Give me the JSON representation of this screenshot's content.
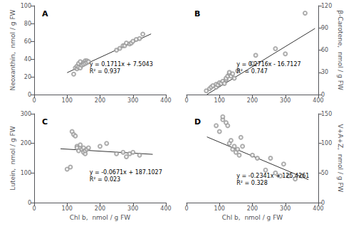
{
  "chart_data": [
    {
      "type": "scatter",
      "title": "A",
      "annotations": [
        "y = 0.1711x + 7.5043\nR² = 0.937"
      ],
      "ylabel": "Neoxanthin,  nmol / g FW",
      "xlim": [
        0,
        400
      ],
      "ylim": [
        0,
        100
      ],
      "xticks": [
        0,
        100,
        200,
        300,
        400
      ],
      "yticks": [
        0,
        20,
        40,
        60,
        80,
        100
      ],
      "grid": false,
      "series": [
        {
          "type": "scatter",
          "color": "#999999",
          "x": [
            120,
            125,
            130,
            130,
            135,
            135,
            140,
            140,
            145,
            150,
            150,
            155,
            155,
            160,
            160,
            165,
            250,
            260,
            270,
            275,
            280,
            290,
            295,
            300,
            310,
            320,
            330
          ],
          "values": [
            23,
            30,
            29,
            32,
            31,
            35,
            30,
            37,
            33,
            36,
            34,
            38,
            35,
            38,
            36,
            37,
            50,
            52,
            55,
            55,
            58,
            57,
            58,
            60,
            62,
            63,
            68
          ]
        },
        {
          "type": "line",
          "color": "#333333",
          "x": [
            100,
            355
          ],
          "values": [
            24.6143,
            68.2448
          ]
        }
      ]
    },
    {
      "type": "scatter",
      "title": "B",
      "annotations": [
        "y = 0.2716x - 16.7127\nR² = 0.747"
      ],
      "ylabel": "β-Carotene,  nmol / g FW",
      "xlim": [
        0,
        400
      ],
      "ylim": [
        0,
        120
      ],
      "xticks": [
        0,
        100,
        200,
        300,
        400
      ],
      "yticks": [
        0,
        30,
        60,
        90,
        120
      ],
      "grid": false,
      "series": [
        {
          "type": "scatter",
          "color": "#999999",
          "x": [
            60,
            70,
            75,
            80,
            90,
            90,
            95,
            100,
            105,
            110,
            115,
            120,
            120,
            125,
            130,
            130,
            135,
            140,
            145,
            155,
            200,
            210,
            270,
            300,
            360
          ],
          "values": [
            5,
            8,
            10,
            12,
            10,
            14,
            13,
            16,
            15,
            18,
            15,
            20,
            22,
            25,
            28,
            30,
            25,
            28,
            22,
            32,
            42,
            53,
            62,
            55,
            110
          ]
        },
        {
          "type": "line",
          "color": "#333333",
          "x": [
            62,
            390
          ],
          "values": [
            0.1265,
            89.2113
          ]
        }
      ]
    },
    {
      "type": "scatter",
      "title": "C",
      "annotations": [
        "y = -0.0671x + 187.1027\nR² = 0.023"
      ],
      "xlabel": "Chl b,  nmol / g FW",
      "ylabel": "Lutein,  nmol / g FW",
      "xlim": [
        0,
        400
      ],
      "ylim": [
        0,
        300
      ],
      "xticks": [
        0,
        100,
        200,
        300,
        400
      ],
      "yticks": [
        0,
        100,
        200,
        300
      ],
      "grid": false,
      "series": [
        {
          "type": "scatter",
          "color": "#999999",
          "x": [
            100,
            110,
            115,
            120,
            125,
            130,
            130,
            135,
            140,
            145,
            150,
            150,
            155,
            155,
            160,
            165,
            200,
            220,
            250,
            270,
            280,
            290,
            300,
            320
          ],
          "values": [
            113,
            120,
            240,
            230,
            225,
            190,
            185,
            175,
            195,
            180,
            170,
            185,
            165,
            175,
            180,
            185,
            190,
            200,
            165,
            170,
            155,
            165,
            170,
            160
          ]
        },
        {
          "type": "line",
          "color": "#333333",
          "x": [
            80,
            360
          ],
          "values": [
            181.7347,
            162.9467
          ]
        }
      ]
    },
    {
      "type": "scatter",
      "title": "D",
      "annotations": [
        "y = -0.2341x + 125.4261\nR² = 0.328"
      ],
      "xlabel": "Chl b,  nmol / g FW",
      "ylabel": "V+A+Z,  nmol / g FW",
      "xlim": [
        0,
        400
      ],
      "ylim": [
        0,
        150
      ],
      "xticks": [
        0,
        100,
        200,
        300,
        400
      ],
      "yticks": [
        0,
        50,
        100,
        150
      ],
      "grid": false,
      "series": [
        {
          "type": "scatter",
          "color": "#999999",
          "x": [
            90,
            100,
            110,
            110,
            120,
            125,
            130,
            135,
            140,
            145,
            150,
            155,
            160,
            165,
            170,
            200,
            215,
            240,
            255,
            270,
            285,
            295,
            310,
            330,
            350
          ],
          "values": [
            130,
            120,
            140,
            145,
            135,
            130,
            100,
            105,
            90,
            95,
            85,
            90,
            80,
            110,
            95,
            80,
            75,
            55,
            75,
            50,
            45,
            65,
            45,
            40,
            45
          ]
        },
        {
          "type": "line",
          "color": "#333333",
          "x": [
            62,
            370
          ],
          "values": [
            110.9119,
            38.8091
          ]
        }
      ]
    }
  ]
}
